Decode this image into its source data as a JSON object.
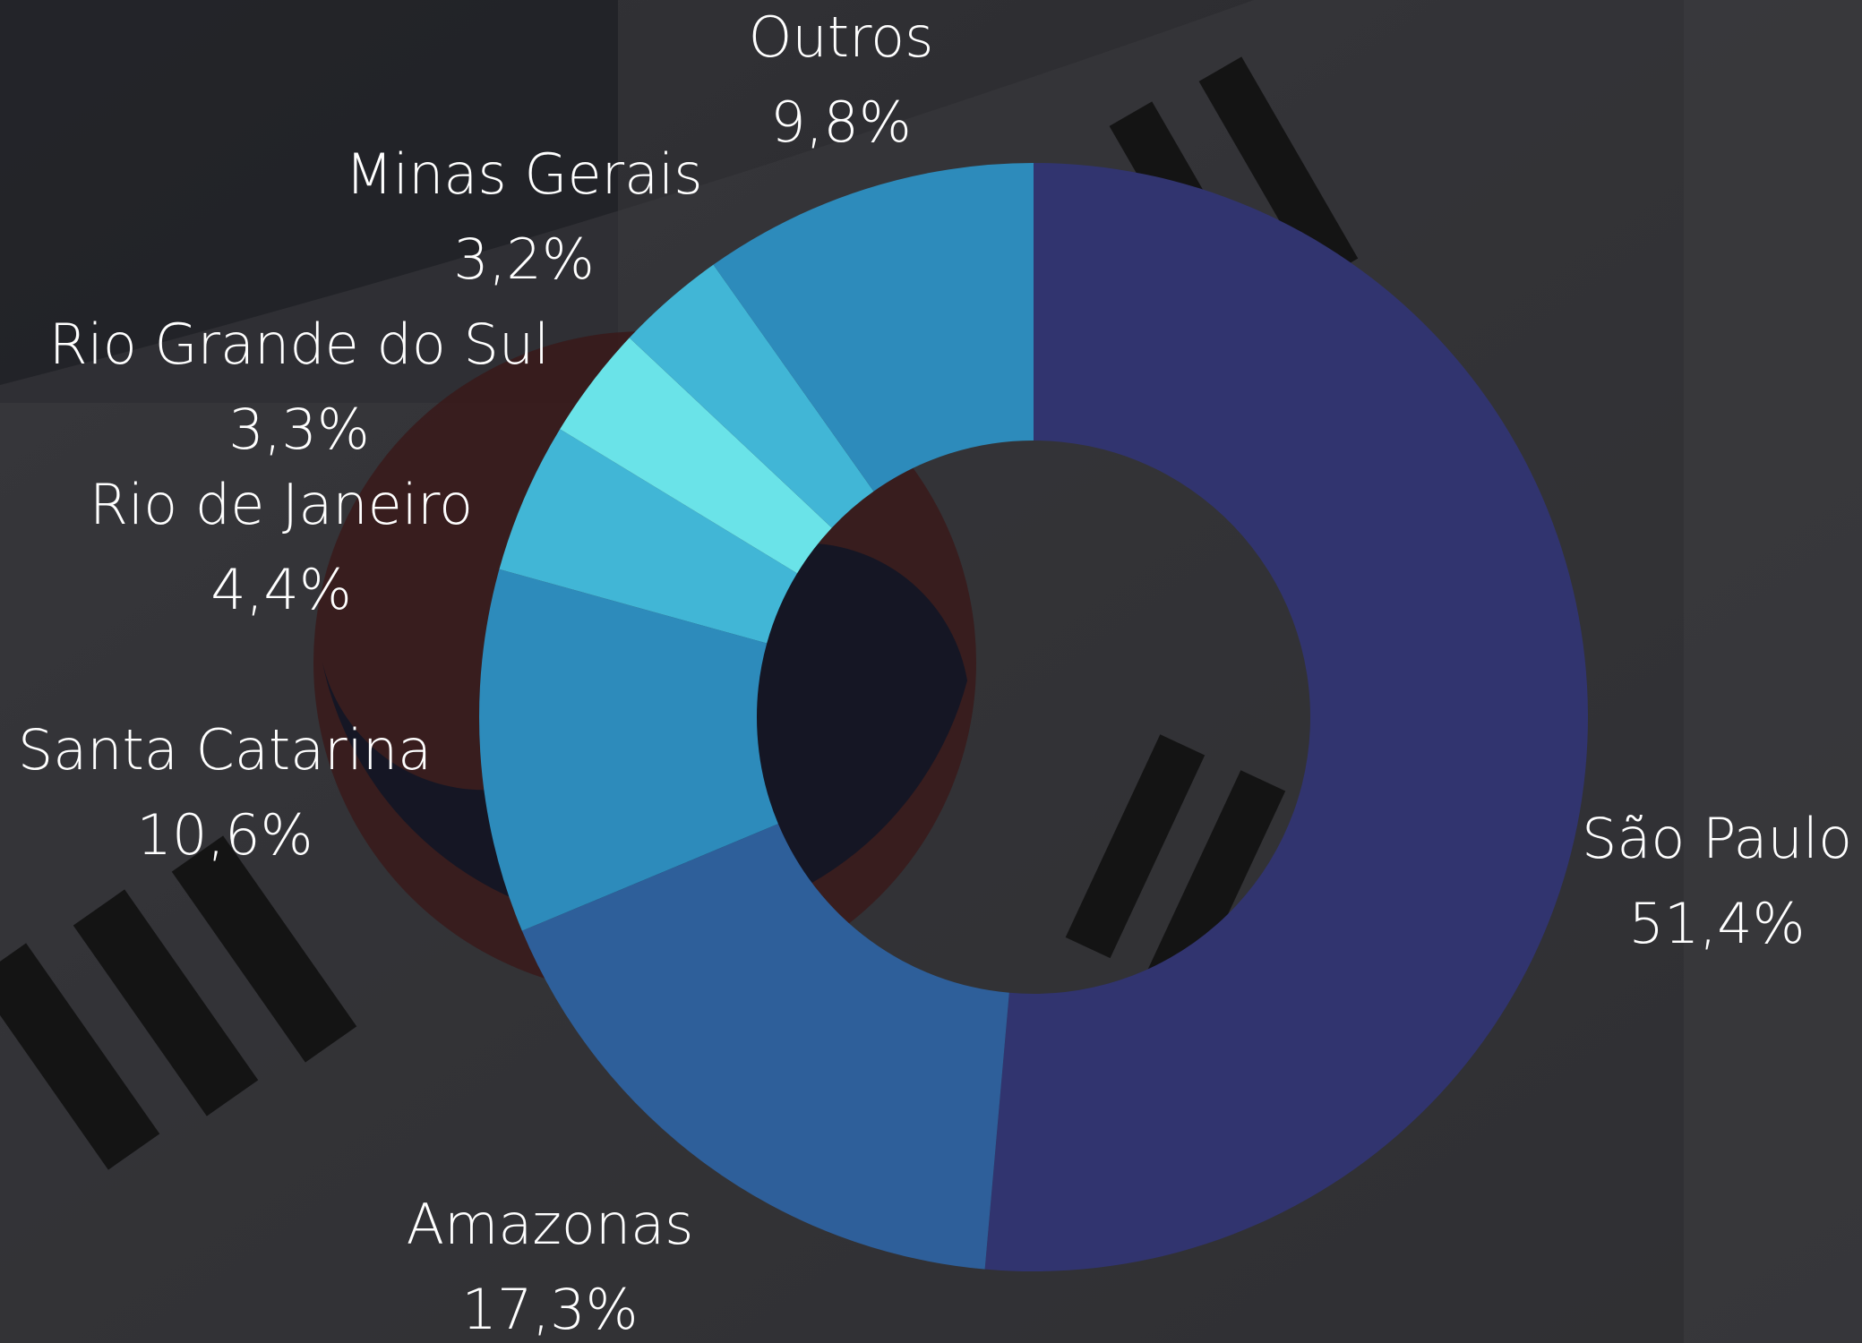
{
  "chart_data": {
    "type": "donut",
    "categories": [
      "São Paulo",
      "Amazonas",
      "Santa Catarina",
      "Rio de Janeiro",
      "Rio Grande do Sul",
      "Minas Gerais",
      "Outros"
    ],
    "values": [
      51.4,
      17.3,
      10.6,
      4.4,
      3.3,
      3.2,
      9.8
    ],
    "value_labels": [
      "51,4%",
      "17,3%",
      "10,6%",
      "4,4%",
      "3,3%",
      "3,2%",
      "9,8%"
    ],
    "colors": [
      "#31346f",
      "#2e5f9a",
      "#2d8bbb",
      "#41b6d6",
      "#6ae3e8",
      "#41b6d6",
      "#2d8bbb"
    ]
  }
}
